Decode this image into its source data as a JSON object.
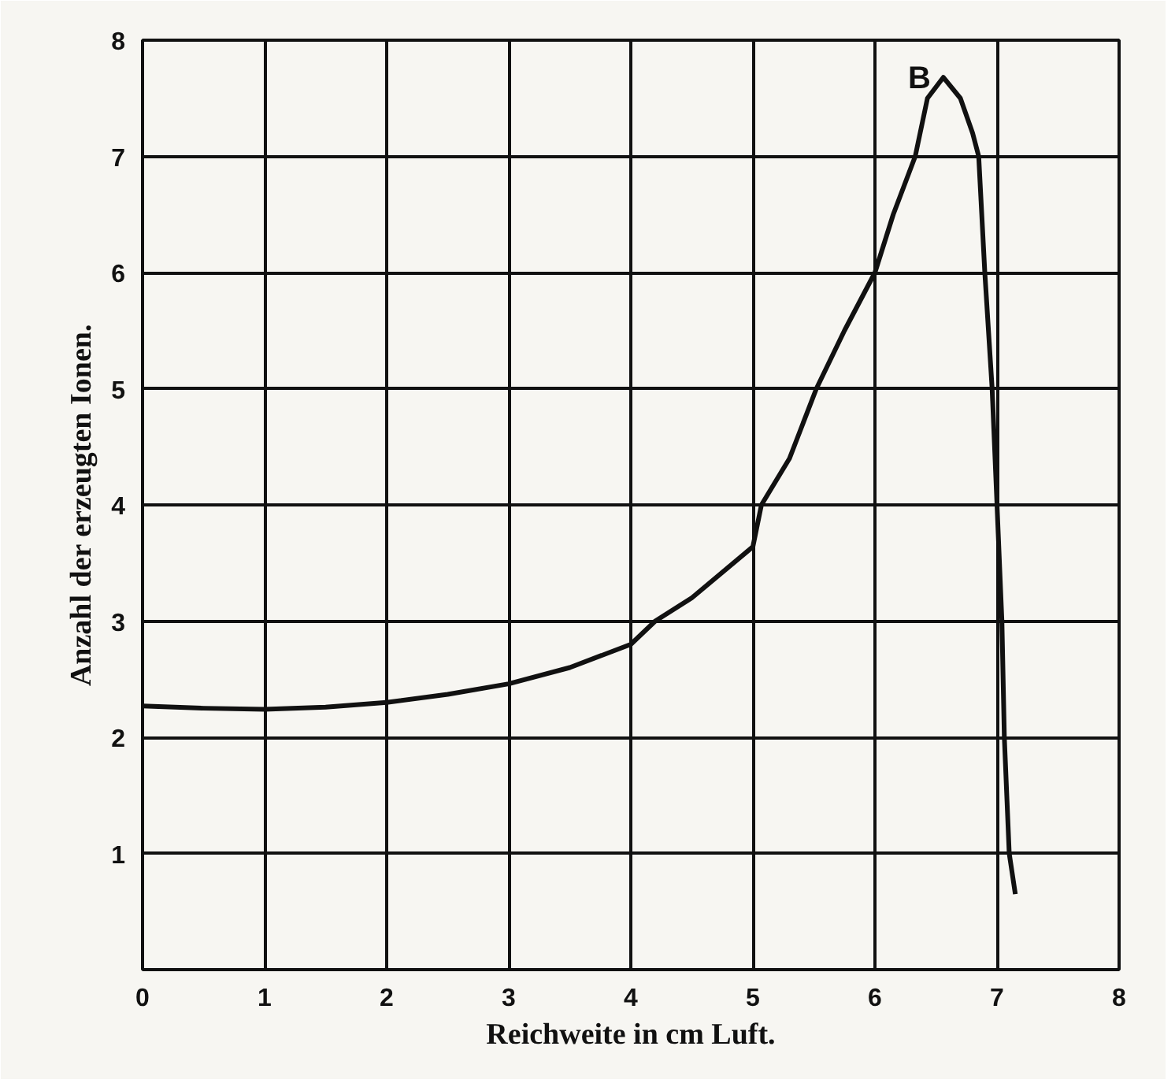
{
  "chart_data": {
    "type": "line",
    "xlabel": "Reichweite in cm Luft.",
    "ylabel": "Anzahl der erzeugten Ionen.",
    "series": [
      {
        "color": "#111111",
        "x": [
          0,
          0.5,
          1,
          1.5,
          2,
          2.5,
          3,
          3.5,
          4,
          4.2,
          4.5,
          5,
          5.07,
          5.3,
          5.52,
          5.75,
          6,
          6.15,
          6.33,
          6.43,
          6.56,
          6.7,
          6.8,
          6.85,
          6.9,
          6.96,
          7.0,
          7.04,
          7.06,
          7.1,
          7.15
        ],
        "values": [
          2.27,
          2.25,
          2.24,
          2.26,
          2.3,
          2.37,
          2.46,
          2.6,
          2.8,
          3.0,
          3.2,
          3.64,
          4.0,
          4.4,
          5.0,
          5.5,
          6.0,
          6.5,
          7.0,
          7.5,
          7.68,
          7.5,
          7.2,
          7.0,
          6.0,
          5.0,
          4.0,
          3.0,
          2.0,
          1.0,
          0.65
        ]
      }
    ],
    "annotations": [
      {
        "text": "B",
        "x": 6.56,
        "y": 7.68
      }
    ],
    "xlim": [
      0,
      8
    ],
    "ylim": [
      0,
      8
    ],
    "xticks": [
      0,
      1,
      2,
      3,
      4,
      5,
      6,
      7,
      8
    ],
    "yticks": [
      {
        "value": 0,
        "label": null
      },
      1,
      2,
      3,
      4,
      5,
      6,
      7,
      8
    ],
    "grid": true,
    "marker": "none",
    "line_style": "solid"
  }
}
